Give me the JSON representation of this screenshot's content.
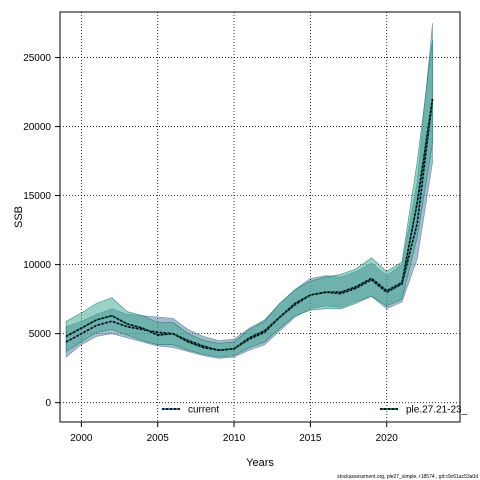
{
  "chart_data": {
    "type": "line",
    "xlabel": "Years",
    "ylabel": "SSB",
    "xlim": [
      1998.6,
      2024.8
    ],
    "ylim": [
      -1400,
      28300
    ],
    "xticks": [
      2000,
      2005,
      2010,
      2015,
      2020
    ],
    "yticks": [
      0,
      5000,
      10000,
      15000,
      20000,
      25000
    ],
    "grid": true,
    "legend_placement": "bottom",
    "x": [
      1999,
      2000,
      2001,
      2002,
      2003,
      2004,
      2005,
      2006,
      2007,
      2008,
      2009,
      2010,
      2011,
      2012,
      2013,
      2014,
      2015,
      2016,
      2017,
      2018,
      2019,
      2020,
      2021,
      2022,
      2023
    ],
    "series": [
      {
        "name": "current",
        "color": "#4a6f96",
        "band_color": "#5b85a8",
        "values": [
          4400,
          5000,
          5600,
          5900,
          5500,
          5300,
          5100,
          5000,
          4500,
          4100,
          3800,
          3900,
          4600,
          5100,
          6200,
          7100,
          7800,
          8000,
          7900,
          8300,
          8900,
          8000,
          8600,
          13000,
          22000
        ],
        "lower": [
          3300,
          4200,
          4800,
          5000,
          4700,
          4400,
          4100,
          4000,
          3700,
          3400,
          3200,
          3300,
          3800,
          4200,
          5200,
          6200,
          6800,
          7000,
          6900,
          7300,
          7700,
          6800,
          7300,
          10400,
          17400
        ],
        "upper": [
          5500,
          5900,
          6400,
          6800,
          6400,
          6300,
          6200,
          6100,
          5300,
          4800,
          4500,
          4600,
          5400,
          6000,
          7200,
          8200,
          9000,
          9200,
          9100,
          9500,
          10100,
          9200,
          10000,
          16000,
          27500
        ]
      },
      {
        "name": "ple.27.21-23_",
        "color": "#0b6b5a",
        "band_color": "#3aa68c",
        "values": [
          4800,
          5400,
          6000,
          6300,
          5700,
          5400,
          4900,
          5000,
          4400,
          4000,
          3800,
          3900,
          4700,
          5200,
          6200,
          7200,
          7800,
          8000,
          8000,
          8400,
          9000,
          8100,
          8700,
          14500,
          22000
        ],
        "lower": [
          3700,
          4400,
          5100,
          5300,
          4900,
          4500,
          4200,
          4200,
          3800,
          3500,
          3300,
          3400,
          4000,
          4400,
          5400,
          6300,
          6700,
          6800,
          6800,
          7200,
          7700,
          7000,
          7500,
          12000,
          18800
        ],
        "upper": [
          5900,
          6500,
          7200,
          7600,
          6600,
          6300,
          5800,
          5800,
          5000,
          4500,
          4300,
          4400,
          5300,
          5900,
          7200,
          8200,
          8800,
          9100,
          9300,
          9700,
          10500,
          9500,
          10200,
          17500,
          26300
        ]
      }
    ]
  },
  "footer": {
    "note": "stockassessment.org, ple27_simple, r18574 , git:c9c61ac53a0d"
  }
}
